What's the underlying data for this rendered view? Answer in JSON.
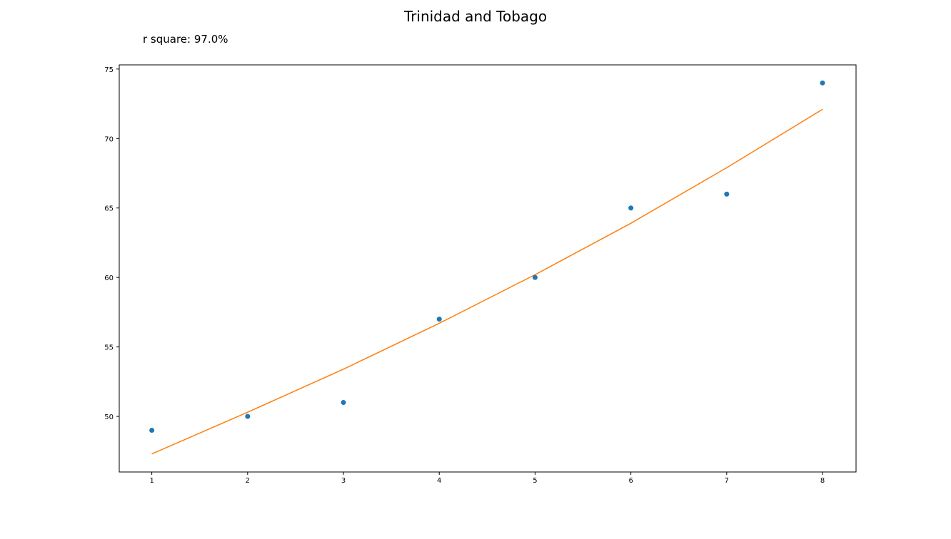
{
  "chart_data": {
    "type": "scatter",
    "title": "Trinidad and Tobago",
    "subtitle": "r square: 97.0%",
    "xlabel": "",
    "ylabel": "",
    "xlim": [
      0.66,
      8.35
    ],
    "ylim": [
      46.0,
      75.3
    ],
    "xticks": [
      1,
      2,
      3,
      4,
      5,
      6,
      7,
      8
    ],
    "yticks": [
      50,
      55,
      60,
      65,
      70,
      75
    ],
    "grid": false,
    "series": [
      {
        "kind": "scatter",
        "color": "#1f77b4",
        "x": [
          1,
          2,
          3,
          4,
          5,
          6,
          7,
          8
        ],
        "y": [
          49,
          50,
          51,
          57,
          60,
          65,
          66,
          74
        ]
      },
      {
        "kind": "line",
        "color": "#ff7f0e",
        "x": [
          1,
          2,
          3,
          4,
          5,
          6,
          7,
          8
        ],
        "y": [
          47.3,
          50.3,
          53.4,
          56.7,
          60.2,
          63.9,
          67.9,
          72.1
        ]
      }
    ]
  }
}
